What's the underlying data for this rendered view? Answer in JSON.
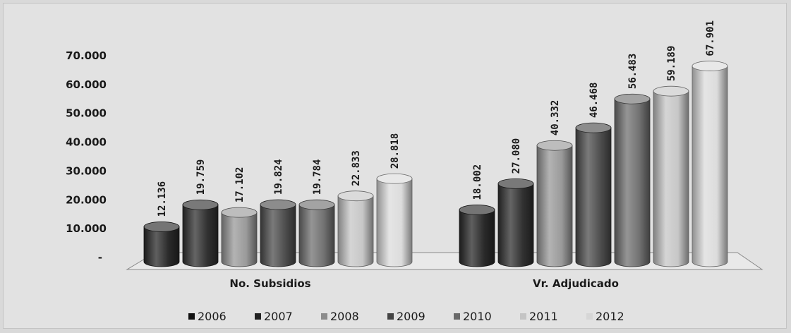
{
  "chart_data": {
    "type": "bar",
    "categories": [
      "No. Subsidios",
      "Vr. Adjudicado"
    ],
    "series": [
      {
        "name": "2006",
        "values": [
          12136,
          18002
        ],
        "labels": [
          "12.136",
          "18.002"
        ],
        "color": "#2a2a2a",
        "legend_color": "#111111"
      },
      {
        "name": "2007",
        "values": [
          19759,
          27080
        ],
        "labels": [
          "19.759",
          "27.080"
        ],
        "color": "#313131",
        "legend_color": "#222222"
      },
      {
        "name": "2008",
        "values": [
          17102,
          40332
        ],
        "labels": [
          "17.102",
          "40.332"
        ],
        "color": "#9a9a9a",
        "legend_color": "#8c8c8c"
      },
      {
        "name": "2009",
        "values": [
          19824,
          46468
        ],
        "labels": [
          "19.824",
          "46.468"
        ],
        "color": "#4e4e4e",
        "legend_color": "#444444"
      },
      {
        "name": "2010",
        "values": [
          19784,
          56483
        ],
        "labels": [
          "19.784",
          "56.483"
        ],
        "color": "#727272",
        "legend_color": "#6a6a6a"
      },
      {
        "name": "2011",
        "values": [
          22833,
          59189
        ],
        "labels": [
          "22.833",
          "59.189"
        ],
        "color": "#c7c7c7",
        "legend_color": "#c4c4c4"
      },
      {
        "name": "2012",
        "values": [
          28818,
          67901
        ],
        "labels": [
          "28.818",
          "67.901"
        ],
        "color": "#dcdcdc",
        "legend_color": "#d6d6d6"
      }
    ],
    "y_ticks": [
      {
        "value": 0,
        "label": "-"
      },
      {
        "value": 10000,
        "label": "10.000"
      },
      {
        "value": 20000,
        "label": "20.000"
      },
      {
        "value": 30000,
        "label": "30.000"
      },
      {
        "value": 40000,
        "label": "40.000"
      },
      {
        "value": 50000,
        "label": "50.000"
      },
      {
        "value": 60000,
        "label": "60.000"
      },
      {
        "value": 70000,
        "label": "70.000"
      }
    ],
    "ylim": [
      0,
      70000
    ],
    "title": "",
    "xlabel": "",
    "ylabel": "",
    "grid": false,
    "legend_position": "bottom",
    "style": "3d-cylinder",
    "background": "#e2e2e2"
  }
}
